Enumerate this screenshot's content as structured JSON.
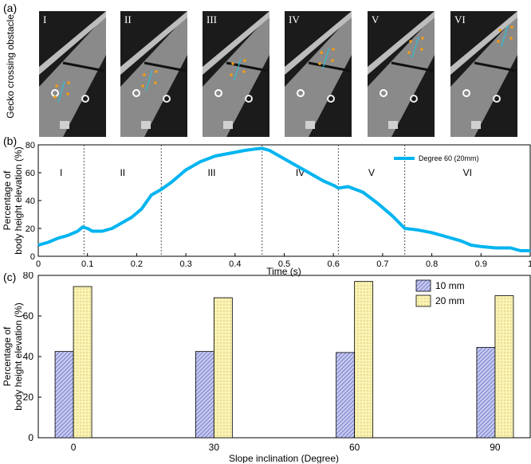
{
  "panel_a": {
    "label": "(a)",
    "side_label": "Gecko crossing obstacle",
    "frames": [
      "I",
      "II",
      "III",
      "IV",
      "V",
      "VI"
    ]
  },
  "panel_b": {
    "label": "(b)"
  },
  "panel_c": {
    "label": "(c)"
  },
  "colors": {
    "line": "#00b4f0",
    "bar_10mm": "#c5c9ee",
    "bar_20mm": "#fbf3b2"
  },
  "chart_data": [
    {
      "type": "line",
      "xlabel": "Time (s)",
      "ylabel": "Percentage of body height elevation (%)",
      "ylabel_lines": [
        "Percentage of",
        "body height elevation (%)"
      ],
      "xlim": [
        0,
        1
      ],
      "ylim": [
        0,
        80
      ],
      "xticks": [
        0,
        0.1,
        0.2,
        0.3,
        0.4,
        0.5,
        0.6,
        0.7,
        0.8,
        0.9,
        1
      ],
      "xtick_labels": [
        "0",
        "0.1",
        "0.2",
        "0.3",
        "0.4",
        "0.5",
        "0.6",
        "0.7",
        "0.8",
        "0.9",
        "1"
      ],
      "yticks": [
        0,
        20,
        40,
        60,
        80
      ],
      "ytick_labels": [
        "0",
        "20",
        "40",
        "60",
        "80"
      ],
      "legend": "top-right",
      "phase_boundaries": [
        0.093,
        0.25,
        0.455,
        0.61,
        0.745
      ],
      "phase_labels": [
        "I",
        "II",
        "III",
        "IV",
        "V",
        "VI"
      ],
      "phase_label_y": 60,
      "series": [
        {
          "name": "Degree 60 (20mm)",
          "x": [
            0,
            0.02,
            0.04,
            0.06,
            0.08,
            0.09,
            0.1,
            0.11,
            0.13,
            0.15,
            0.17,
            0.19,
            0.21,
            0.23,
            0.25,
            0.27,
            0.3,
            0.33,
            0.36,
            0.39,
            0.42,
            0.44,
            0.455,
            0.47,
            0.49,
            0.52,
            0.55,
            0.58,
            0.6,
            0.61,
            0.63,
            0.66,
            0.69,
            0.72,
            0.745,
            0.77,
            0.8,
            0.83,
            0.86,
            0.88,
            0.9,
            0.93,
            0.96,
            0.98,
            1.0
          ],
          "values": [
            8,
            10,
            13,
            15,
            18,
            21,
            20,
            18,
            18,
            20,
            24,
            28,
            34,
            44,
            48,
            53,
            62,
            68,
            72,
            74,
            76,
            77,
            77.5,
            76,
            72,
            66,
            60,
            54,
            51,
            49,
            50,
            46,
            38,
            29,
            20,
            19,
            17,
            14,
            11,
            8,
            7,
            6,
            6,
            4,
            4
          ]
        }
      ]
    },
    {
      "type": "bar",
      "xlabel": "Slope inclination (Degree)",
      "ylabel": "Percentage of body height elevation (%)",
      "ylabel_lines": [
        "Percentage of",
        "body height elevation (%)"
      ],
      "categories": [
        "0",
        "30",
        "60",
        "90"
      ],
      "ylim": [
        0,
        80
      ],
      "yticks": [
        0,
        20,
        40,
        60,
        80
      ],
      "ytick_labels": [
        "0",
        "20",
        "40",
        "60",
        "80"
      ],
      "legend": "top-right",
      "series": [
        {
          "name": "10 mm",
          "values": [
            42.5,
            42.5,
            42,
            44.5
          ]
        },
        {
          "name": "20 mm",
          "values": [
            74.5,
            69,
            77,
            70
          ]
        }
      ]
    }
  ]
}
